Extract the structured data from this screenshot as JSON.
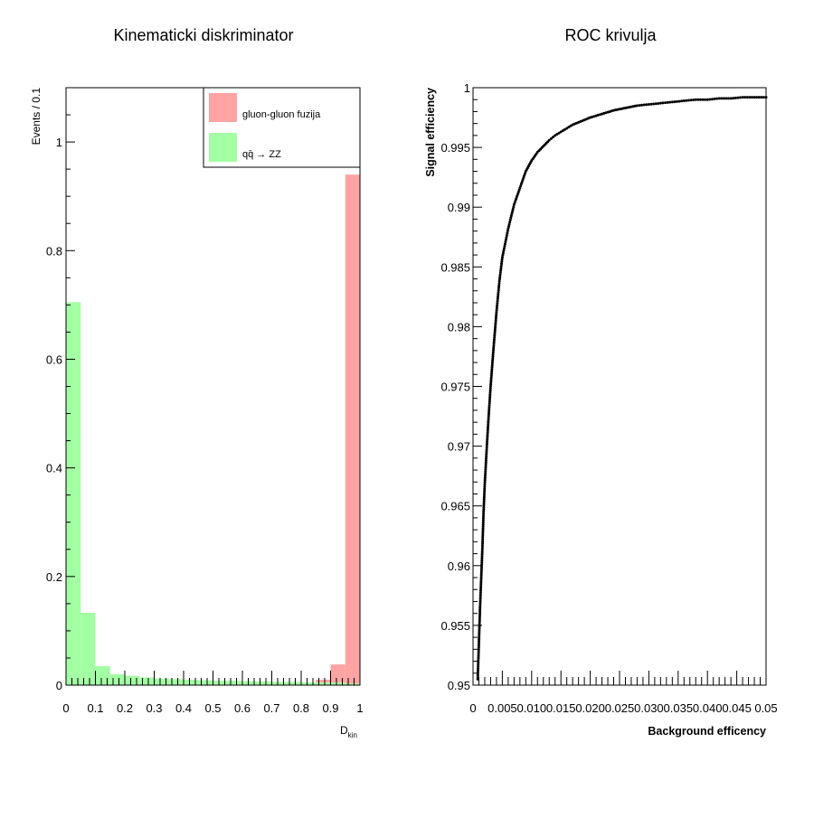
{
  "chart_data": [
    {
      "type": "bar",
      "title": "Kinematicki diskriminator",
      "xlabel": "D",
      "xlabel_sub": "kin",
      "ylabel": "Events / 0.1",
      "xlim": [
        0,
        1
      ],
      "ylim": [
        0,
        1.1
      ],
      "bin_width": 0.05,
      "xtick_labels": [
        "0",
        "0.1",
        "0.2",
        "0.3",
        "0.4",
        "0.5",
        "0.6",
        "0.7",
        "0.8",
        "0.9",
        "1"
      ],
      "ytick_labels": [
        "0",
        "0.2",
        "0.4",
        "0.6",
        "0.8",
        "1"
      ],
      "legend_position": "top-right",
      "series": [
        {
          "name": "gluon-gluon fuzija",
          "color": "#ffa3a3",
          "values": [
            0,
            0,
            0,
            0,
            0,
            0,
            0,
            0,
            0,
            0,
            0,
            0,
            0,
            0,
            0,
            0,
            0,
            0.01,
            0.038,
            0.94
          ]
        },
        {
          "name": "qq̄ → ZZ",
          "color": "#a3ffa3",
          "values": [
            0.705,
            0.133,
            0.035,
            0.02,
            0.017,
            0.014,
            0.012,
            0.011,
            0.01,
            0.009,
            0.008,
            0.008,
            0.007,
            0.007,
            0.006,
            0.006,
            0.005,
            0.005,
            0.005,
            0.003
          ]
        }
      ]
    },
    {
      "type": "scatter",
      "title": "ROC krivulja",
      "xlabel": "Background efficency",
      "ylabel": "Signal efficiency",
      "xlim": [
        0,
        0.05
      ],
      "ylim": [
        0.95,
        1
      ],
      "xtick_labels": [
        "0",
        "0.005",
        "0.010",
        "0.015",
        "0.020",
        "0.025",
        "0.030",
        "0.035",
        "0.040",
        "0.045",
        "0.05"
      ],
      "ytick_labels": [
        "0.95",
        "0.955",
        "0.96",
        "0.965",
        "0.97",
        "0.975",
        "0.98",
        "0.985",
        "0.99",
        "0.995",
        "1"
      ],
      "series": [
        {
          "name": "ROC",
          "color": "#000000",
          "x": [
            0.0008,
            0.001,
            0.0012,
            0.0014,
            0.0016,
            0.0018,
            0.002,
            0.0023,
            0.0026,
            0.003,
            0.0035,
            0.004,
            0.0045,
            0.005,
            0.006,
            0.007,
            0.008,
            0.009,
            0.01,
            0.011,
            0.012,
            0.013,
            0.014,
            0.015,
            0.016,
            0.017,
            0.018,
            0.019,
            0.02,
            0.022,
            0.024,
            0.026,
            0.028,
            0.03,
            0.032,
            0.034,
            0.036,
            0.038,
            0.04,
            0.042,
            0.044,
            0.046,
            0.048,
            0.05
          ],
          "y": [
            0.9505,
            0.9535,
            0.9565,
            0.959,
            0.9615,
            0.9645,
            0.9668,
            0.9695,
            0.972,
            0.975,
            0.9782,
            0.9812,
            0.9838,
            0.9858,
            0.9882,
            0.9902,
            0.9916,
            0.993,
            0.9939,
            0.9946,
            0.9951,
            0.9956,
            0.996,
            0.9963,
            0.9966,
            0.9969,
            0.9971,
            0.9973,
            0.9975,
            0.9978,
            0.9981,
            0.9983,
            0.9985,
            0.9986,
            0.9987,
            0.9988,
            0.9989,
            0.999,
            0.999,
            0.9991,
            0.9991,
            0.9992,
            0.9992,
            0.9992
          ]
        }
      ]
    }
  ]
}
